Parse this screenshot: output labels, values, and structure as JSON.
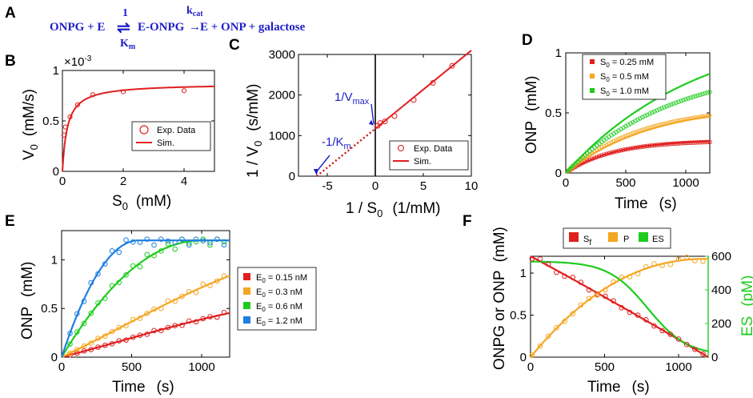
{
  "equation": {
    "left": "ONPG + E",
    "arrow": "⇌",
    "k_top": "1",
    "middle": "E-ONPG",
    "km": "K",
    "km_sub": "m",
    "kcat": "k",
    "kcat_sub": "cat",
    "right_arrow": "→",
    "right": "E + ONP + galactose"
  },
  "colors": {
    "red": "#e01f1f",
    "orange": "#f5a623",
    "green": "#1ecc1e",
    "blue": "#1f7fe0",
    "darkred": "#cc1010",
    "annot": "#1e1ec8"
  },
  "panels": {
    "A": {
      "letter": "A"
    },
    "B": {
      "letter": "B",
      "multiplier": "×10",
      "multiplier_exp": "-3",
      "xlabel": "S",
      "xlabel_sub": "0",
      "xlabel_unit": "(mM)",
      "ylabel": "V",
      "ylabel_sub": "0",
      "ylabel_unit": "(mM/s)",
      "legend": [
        "Exp. Data",
        "Sim."
      ]
    },
    "C": {
      "letter": "C",
      "xlabel": "1 / S",
      "xlabel_sub": "0",
      "xlabel_unit": "(1/mM)",
      "ylabel": "1 / V",
      "ylabel_sub": "0",
      "ylabel_unit": "(s/mM)",
      "ann_vmax": "1/V",
      "ann_vmax_sub": "max",
      "ann_km": "-1/K",
      "ann_km_sub": "m",
      "legend": [
        "Exp. Data",
        "Sim."
      ]
    },
    "D": {
      "letter": "D",
      "xlabel": "Time",
      "xlabel_unit": "(s)",
      "ylabel": "ONP",
      "ylabel_unit": "(mM)",
      "legend": [
        {
          "pre": "S",
          "sub": "0",
          "post": " = 0.25 mM"
        },
        {
          "pre": "S",
          "sub": "0",
          "post": " = 0.5 mM"
        },
        {
          "pre": "S",
          "sub": "0",
          "post": " = 1.0 mM"
        }
      ]
    },
    "E": {
      "letter": "E",
      "xlabel": "Time",
      "xlabel_unit": "(s)",
      "ylabel": "ONP",
      "ylabel_unit": "(mM)",
      "legend": [
        {
          "pre": "E",
          "sub": "0",
          "post": " = 0.15 nM"
        },
        {
          "pre": "E",
          "sub": "0",
          "post": " = 0.3 nM"
        },
        {
          "pre": "E",
          "sub": "0",
          "post": " = 0.6 nM"
        },
        {
          "pre": "E",
          "sub": "0",
          "post": " = 1.2 nM"
        }
      ]
    },
    "F": {
      "letter": "F",
      "xlabel": "Time",
      "xlabel_unit": "(s)",
      "ylabel": "ONPG or ONP",
      "ylabel_unit": "(mM)",
      "ylabel_right": "ES",
      "ylabel_right_unit": "(pM)",
      "legend": [
        {
          "pre": "S",
          "sub": "f",
          "post": ""
        },
        {
          "pre": "P",
          "sub": "",
          "post": ""
        },
        {
          "pre": "ES",
          "sub": "",
          "post": ""
        }
      ]
    }
  },
  "chart_data": [
    {
      "id": "B",
      "type": "scatter",
      "title": "",
      "xlabel": "S0 (mM)",
      "ylabel": "V0 (mM/s)",
      "xlim": [
        0,
        5
      ],
      "ylim": [
        0,
        0.001
      ],
      "xticks": [
        0,
        2,
        4
      ],
      "yticks": [
        0,
        0.0005,
        0.001
      ],
      "yticklabels": [
        "0",
        "0.5",
        "1"
      ],
      "series": [
        {
          "name": "Exp. Data",
          "kind": "markers",
          "x": [
            0.05,
            0.1,
            0.25,
            0.5,
            1,
            2,
            4
          ],
          "y": [
            0.00036,
            0.00044,
            0.00054,
            0.00066,
            0.00076,
            0.00079,
            0.0008
          ]
        },
        {
          "name": "Sim.",
          "kind": "line",
          "model": "michaelis_menten",
          "vmax": 0.00087,
          "km": 0.165
        }
      ]
    },
    {
      "id": "C",
      "type": "scatter",
      "title": "",
      "xlabel": "1 / S0 (1/mM)",
      "ylabel": "1 / V0 (s/mM)",
      "xlim": [
        -8,
        10
      ],
      "ylim": [
        0,
        3000
      ],
      "xticks": [
        -5,
        0,
        5,
        10
      ],
      "yticks": [
        0,
        1000,
        2000,
        3000
      ],
      "series": [
        {
          "name": "Exp. Data",
          "kind": "markers",
          "x": [
            0.25,
            0.5,
            1,
            2,
            4,
            6,
            8
          ],
          "y": [
            1240,
            1310,
            1350,
            1480,
            1880,
            2300,
            2720
          ]
        },
        {
          "name": "Sim.",
          "kind": "line",
          "x": [
            0,
            10
          ],
          "y": [
            1170,
            3100
          ]
        },
        {
          "name": "extrapolation",
          "kind": "dotted",
          "x": [
            -6.1,
            0
          ],
          "y": [
            0,
            1170
          ]
        }
      ],
      "annotations": [
        {
          "text": "1/Vmax",
          "points_to": [
            0,
            1170
          ]
        },
        {
          "text": "-1/Km",
          "points_to": [
            -6.1,
            0
          ]
        }
      ]
    },
    {
      "id": "D",
      "type": "line",
      "title": "",
      "xlabel": "Time (s)",
      "ylabel": "ONP (mM)",
      "xlim": [
        0,
        1200
      ],
      "ylim": [
        0,
        1
      ],
      "xticks": [
        0,
        500,
        1000
      ],
      "yticks": [
        0,
        0.5,
        1
      ],
      "series": [
        {
          "name": "S0 = 0.25 mM",
          "color": "red",
          "sim_plateau": 0.28,
          "sim_rate": 0.0024,
          "exp_plateau": 0.27,
          "exp_rate": 0.0026
        },
        {
          "name": "S0 = 0.5 mM",
          "color": "orange",
          "sim_plateau": 0.58,
          "sim_rate": 0.0014,
          "exp_plateau": 0.56,
          "exp_rate": 0.0016
        },
        {
          "name": "S0 = 1.0 mM",
          "color": "green",
          "sim_plateau": 1.25,
          "sim_rate": 0.0009,
          "exp_plateau": 0.92,
          "exp_rate": 0.0011
        }
      ]
    },
    {
      "id": "E",
      "type": "line",
      "title": "",
      "xlabel": "Time (s)",
      "ylabel": "ONP (mM)",
      "xlim": [
        0,
        1200
      ],
      "ylim": [
        0,
        1.3
      ],
      "xticks": [
        0,
        500,
        1000
      ],
      "yticks": [
        0,
        0.5,
        1
      ],
      "series": [
        {
          "name": "E0 = 0.15 nM",
          "color": "red",
          "sim_end": 0.45
        },
        {
          "name": "E0 = 0.3 nM",
          "color": "orange",
          "sim_end": 0.83
        },
        {
          "name": "E0 = 0.6 nM",
          "color": "green",
          "plateau_time": 1000
        },
        {
          "name": "E0 = 1.2 nM",
          "color": "blue",
          "plateau_time": 550
        }
      ],
      "plateau": 1.2
    },
    {
      "id": "F",
      "type": "line",
      "title": "",
      "xlabel": "Time (s)",
      "ylabel": "ONPG or ONP (mM)",
      "ylabel_right": "ES (pM)",
      "xlim": [
        0,
        1200
      ],
      "ylim": [
        0,
        1.2
      ],
      "ylim_right": [
        0,
        600
      ],
      "xticks": [
        0,
        500,
        1000
      ],
      "yticks": [
        0,
        0.5,
        1
      ],
      "yticks_right": [
        0,
        200,
        400,
        600
      ],
      "series": [
        {
          "name": "Sf",
          "color": "red",
          "axis": "left",
          "start": 1.2,
          "end": 0
        },
        {
          "name": "P",
          "color": "orange",
          "axis": "left",
          "start": 0,
          "end": 1.17
        },
        {
          "name": "ES",
          "color": "green",
          "axis": "right",
          "start": 560,
          "end": 10
        }
      ]
    }
  ]
}
